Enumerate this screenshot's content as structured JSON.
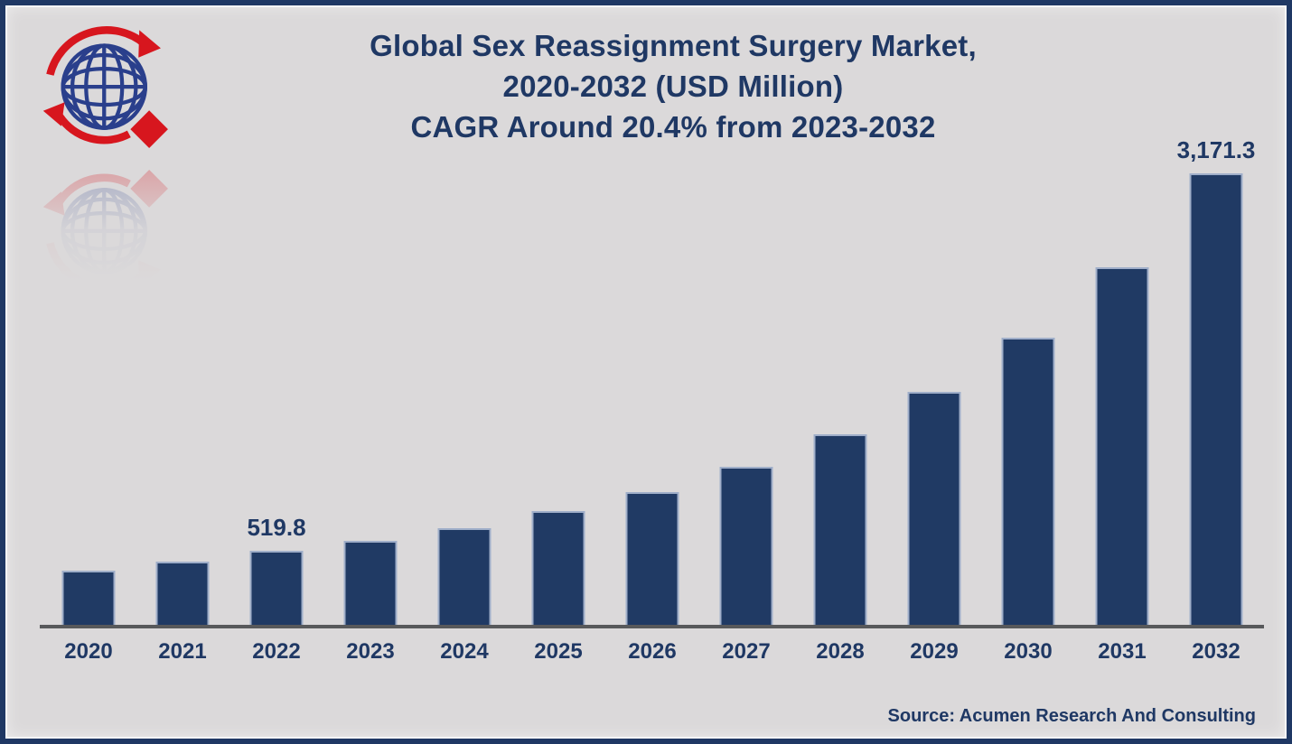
{
  "header": {
    "title_lines": [
      "Global Sex Reassignment Surgery Market,",
      "2020-2032 (USD Million)",
      "CAGR Around 20.4% from 2023-2032"
    ]
  },
  "logo": {
    "icon": "globe-with-red-arrows-and-diamond",
    "globe_color": "#2A3F8C",
    "accent_color": "#D7161E"
  },
  "footer": {
    "source": "Source: Acumen Research And Consulting"
  },
  "colors": {
    "background": "#DBD9DA",
    "frame_border": "#1F3864",
    "bar_fill": "#203A64",
    "bar_border": "#9FAEC9",
    "axis_line": "#58595B",
    "text": "#1F3864"
  },
  "chart_data": {
    "type": "bar",
    "title": "Global Sex Reassignment Surgery Market, 2020-2032 (USD Million)",
    "subtitle": "CAGR Around 20.4% from 2023-2032",
    "unit": "USD Million",
    "cagr": "20.4%",
    "cagr_period": "2023-2032",
    "categories": [
      "2020",
      "2021",
      "2022",
      "2023",
      "2024",
      "2025",
      "2026",
      "2027",
      "2028",
      "2029",
      "2030",
      "2031",
      "2032"
    ],
    "values": [
      380.5,
      444.0,
      519.8,
      589.0,
      677.0,
      797.0,
      935.0,
      1112.0,
      1338.0,
      1635.0,
      2019.0,
      2510.0,
      3171.3
    ],
    "data_labels": [
      null,
      null,
      "519.8",
      null,
      null,
      null,
      null,
      null,
      null,
      null,
      null,
      null,
      "3,171.3"
    ],
    "ylim": [
      0,
      3200
    ],
    "grid": false,
    "legend": false,
    "bar_color": "#203A64",
    "axis_color": "#58595B"
  }
}
